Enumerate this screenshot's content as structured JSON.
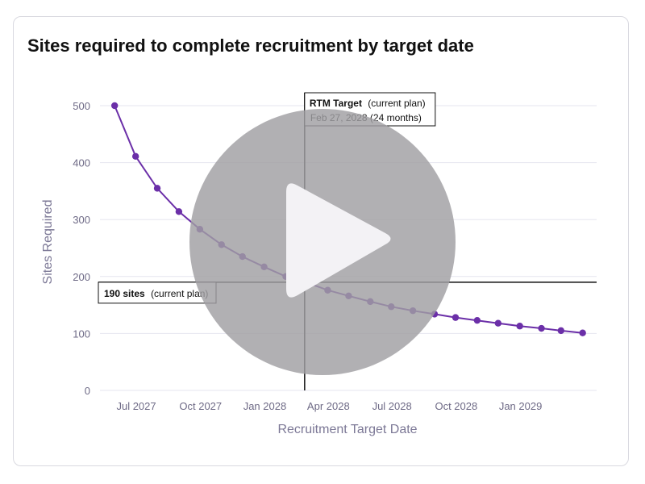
{
  "chart_data": {
    "type": "line",
    "title": "Sites required to complete recruitment by target date",
    "xlabel": "Recruitment Target Date",
    "ylabel": "Sites Required",
    "x_tick_labels": [
      "Jul 2027",
      "Oct 2027",
      "Jan 2028",
      "Apr 2028",
      "Jul 2028",
      "Oct 2028",
      "Jan 2029"
    ],
    "y_ticks": [
      0,
      100,
      200,
      300,
      400,
      500
    ],
    "ylim": [
      0,
      500
    ],
    "grid": true,
    "colors": {
      "series": "#6b2fa8",
      "reference": "#111111",
      "grid": "#e6e6ef"
    },
    "series": [
      {
        "x": [
          "2027-05-31",
          "2027-06-30",
          "2027-07-31",
          "2027-08-31",
          "2027-09-30",
          "2027-10-31",
          "2027-11-30",
          "2027-12-31",
          "2028-01-31",
          "2028-02-29",
          "2028-03-31",
          "2028-04-30",
          "2028-05-31",
          "2028-06-30",
          "2028-07-31",
          "2028-08-31",
          "2028-09-30",
          "2028-10-31",
          "2028-11-30",
          "2028-12-31",
          "2029-01-31",
          "2029-02-28",
          "2029-03-31"
        ],
        "values": [
          500,
          411,
          355,
          314,
          283,
          256,
          235,
          217,
          200,
          190,
          176,
          166,
          156,
          147,
          140,
          134,
          128,
          123,
          118,
          113,
          109,
          105,
          101
        ]
      }
    ],
    "annotations": {
      "vertical": {
        "x": "2028-02-27",
        "label_bold": "RTM Target",
        "label_rest": "(current plan)",
        "label_line2": "Feb 27, 2028 (24 months)"
      },
      "horizontal": {
        "y": 190,
        "label_bold": "190 sites",
        "label_rest": "(current plan)"
      }
    },
    "overlay": {
      "type": "video-play-button",
      "icon": "play-icon"
    }
  }
}
